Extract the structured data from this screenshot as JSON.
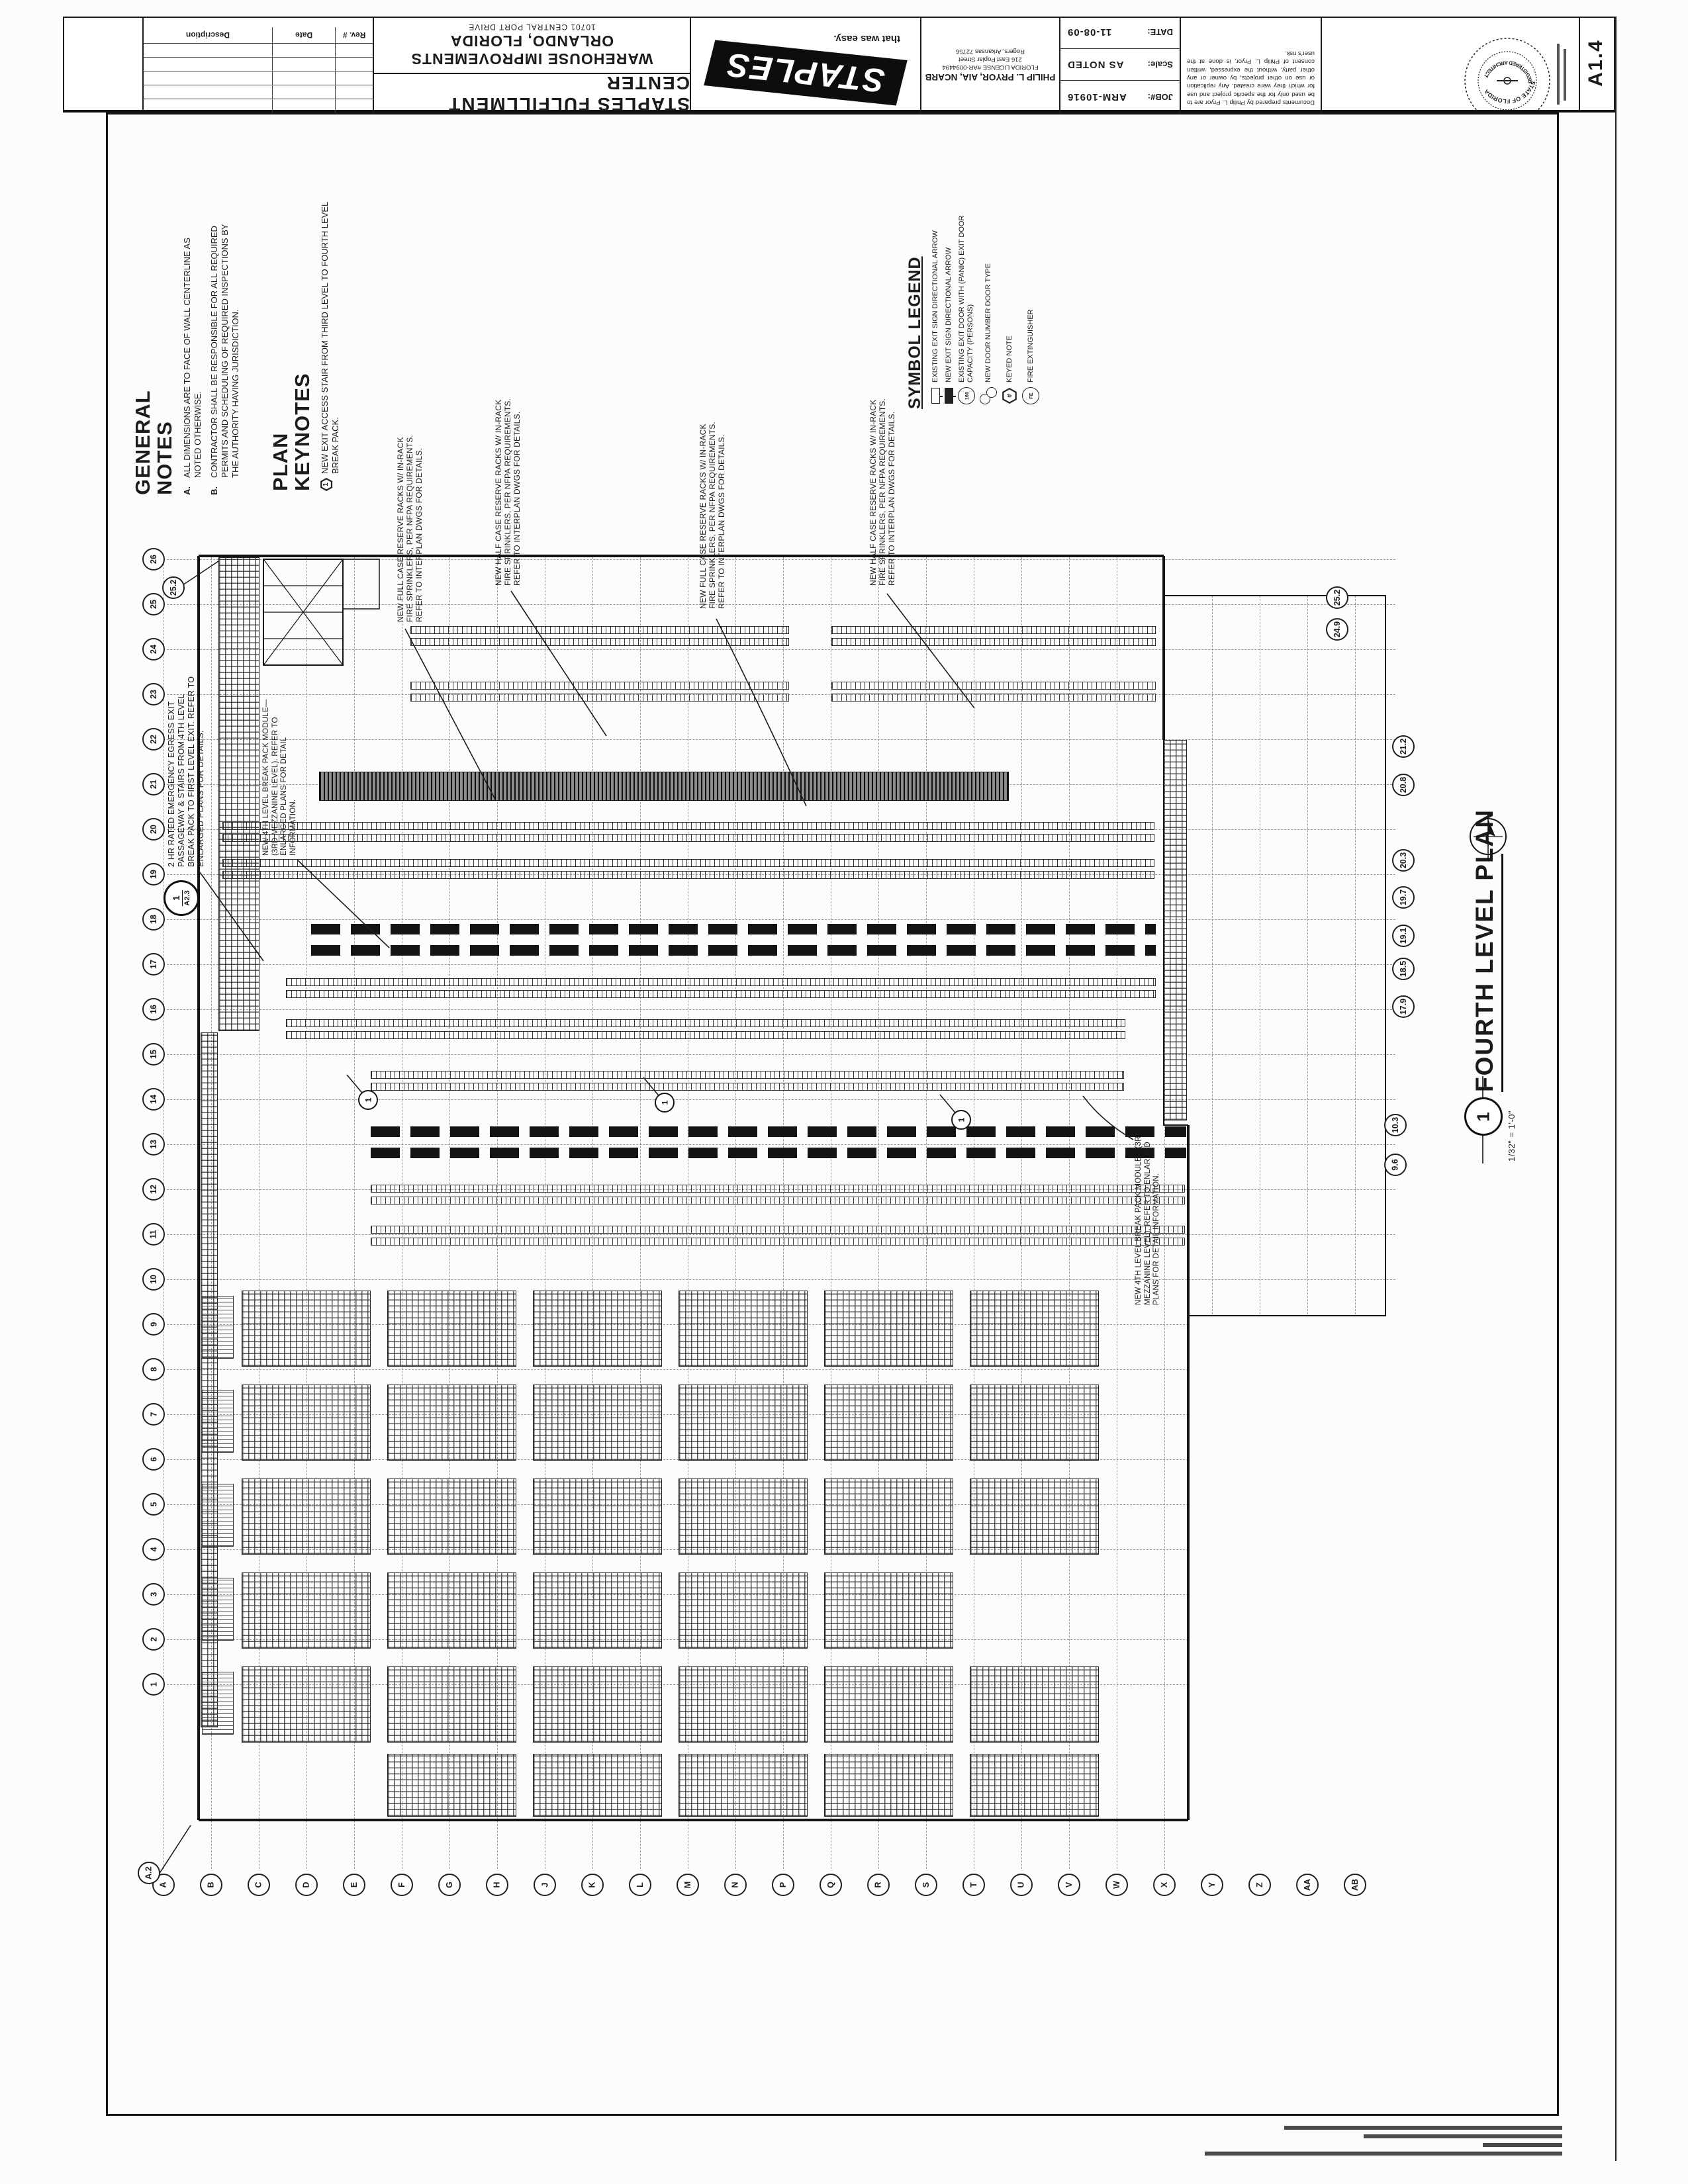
{
  "sheet": {
    "number": "A1.4"
  },
  "title_block": {
    "revisions": {
      "headers": [
        "Rev. #",
        "Date",
        "Description"
      ],
      "empty_rows": 5
    },
    "project": {
      "facility": "STAPLES FULFILLMENT CENTER",
      "scope": "WAREHOUSE IMPROVEMENTS",
      "location": "ORLANDO, FLORIDA",
      "address": "10701 CENTRAL PORT DRIVE"
    },
    "logo": {
      "brand": "STAPLES",
      "tagline": "that was easy."
    },
    "architect": {
      "name": "PHILIP L. PRYOR, AIA, NCARB",
      "license": "FLORIDA LICENSE #AR-0094494",
      "street": "216 East Poplar Street",
      "city": "Rogers, Arkansas 72756"
    },
    "info": {
      "rows": [
        {
          "label": "DATE:",
          "value": "11-08-09"
        },
        {
          "label": "Scale:",
          "value": "AS NOTED"
        },
        {
          "label": "JOB#:",
          "value": "ARM-10916"
        }
      ]
    },
    "disclaimer": "Documents prepared by Philip L. Pryor are to be used only for the specific project and use for which they were created. Any replication or use on other projects, by owner or any other party, without the expressed, written consent of Philip L. Pryor, is done at the user's risk.",
    "seal": {
      "ring_top": "STATE OF FLORIDA",
      "ring_bottom": "REGISTERED ARCHITECT"
    }
  },
  "general_notes": {
    "title": "GENERAL\nNOTES",
    "items": [
      {
        "key": "A.",
        "text": "ALL DIMENSIONS ARE TO FACE OF WALL CENTERLINE AS NOTED OTHERWISE."
      },
      {
        "key": "B.",
        "text": "CONTRACTOR SHALL BE RESPONSIBLE FOR ALL REQUIRED PERMITS AND SCHEDULING OF REQUIRED INSPECTIONS BY THE AUTHORITY HAVING JURISDICTION."
      }
    ]
  },
  "plan_keynotes": {
    "title": "PLAN\nKEYNOTES",
    "items": [
      {
        "key": "1",
        "text": "NEW EXIT ACCESS STAIR FROM THIRD LEVEL TO FOURTH LEVEL BREAK PACK."
      }
    ]
  },
  "symbol_legend": {
    "title": "SYMBOL LEGEND",
    "items": [
      {
        "icon": "exit-sign-existing-icon",
        "label": "EXISTING EXIT SIGN DIRECTIONAL ARROW"
      },
      {
        "icon": "exit-sign-new-icon",
        "label": "NEW EXIT SIGN DIRECTIONAL ARROW"
      },
      {
        "icon": "exit-door-capacity-icon",
        "label": "EXISTING EXIT DOOR WITH (PANIC) EXIT DOOR CAPACITY (PERSONS)"
      },
      {
        "icon": "door-number-icon",
        "label": "NEW DOOR NUMBER DOOR TYPE"
      },
      {
        "icon": "keyed-note-icon",
        "label": "KEYED NOTE"
      },
      {
        "icon": "fire-extinguisher-icon",
        "label": "FIRE EXTINGUISHER"
      }
    ]
  },
  "plan": {
    "title": "FOURTH LEVEL PLAN",
    "detail_number": "1",
    "scale": "1/32\" = 1'-0\"",
    "section_marker": {
      "number": "1",
      "sheet": "A2.3"
    },
    "keynote_bubble": "1",
    "annotation_texts": {
      "full_case": "NEW FULL CASE RESERVE RACKS W/ IN-RACK FIRE SPRINKLERS, PER NFPA REQUIREMENTS. REFER TO INTERPLAN DWGS FOR DETAILS.",
      "half_case": "NEW HALF CASE RESERVE RACKS W/ IN-RACK FIRE SPRINKLERS, PER NFPA REQUIREMENTS. REFER TO INTERPLAN DWGS FOR DETAILS.",
      "egress": "2 HR RATED EMERGENCY EGRESS EXIT PASSAGEWAY & STAIRS FROM 4TH LEVEL BREAK PACK TO FIRST LEVEL EXIT. REFER TO ENLARGED PLANS FOR DETAILS.",
      "break_pack": "NEW 4TH LEVEL BREAK PACK MODULE—(3RD MEZZANINE LEVEL). REFER TO ENLARGED PLANS FOR DETAIL INFORMATION."
    },
    "grid": {
      "left_labels": [
        "26",
        "25",
        "24",
        "23",
        "22",
        "21",
        "20",
        "19",
        "18",
        "17",
        "16",
        "15",
        "14",
        "13",
        "12",
        "11",
        "10",
        "9",
        "8",
        "7",
        "6",
        "5",
        "4",
        "3",
        "2",
        "1"
      ],
      "left_extra": "25.2",
      "bottom_labels": [
        "A",
        "B",
        "C",
        "D",
        "E",
        "F",
        "G",
        "H",
        "J",
        "K",
        "L",
        "M",
        "N",
        "P",
        "Q",
        "R",
        "S",
        "T",
        "U",
        "V",
        "W",
        "X",
        "Y",
        "Z",
        "AA",
        "AB"
      ],
      "bottom_extra": "A.2",
      "right_labels": [
        "25.2",
        "24.9",
        "21.2",
        "20.8",
        "20.3",
        "19.7",
        "19.1",
        "18.5",
        "17.9",
        "10.3",
        "9.6"
      ]
    }
  }
}
